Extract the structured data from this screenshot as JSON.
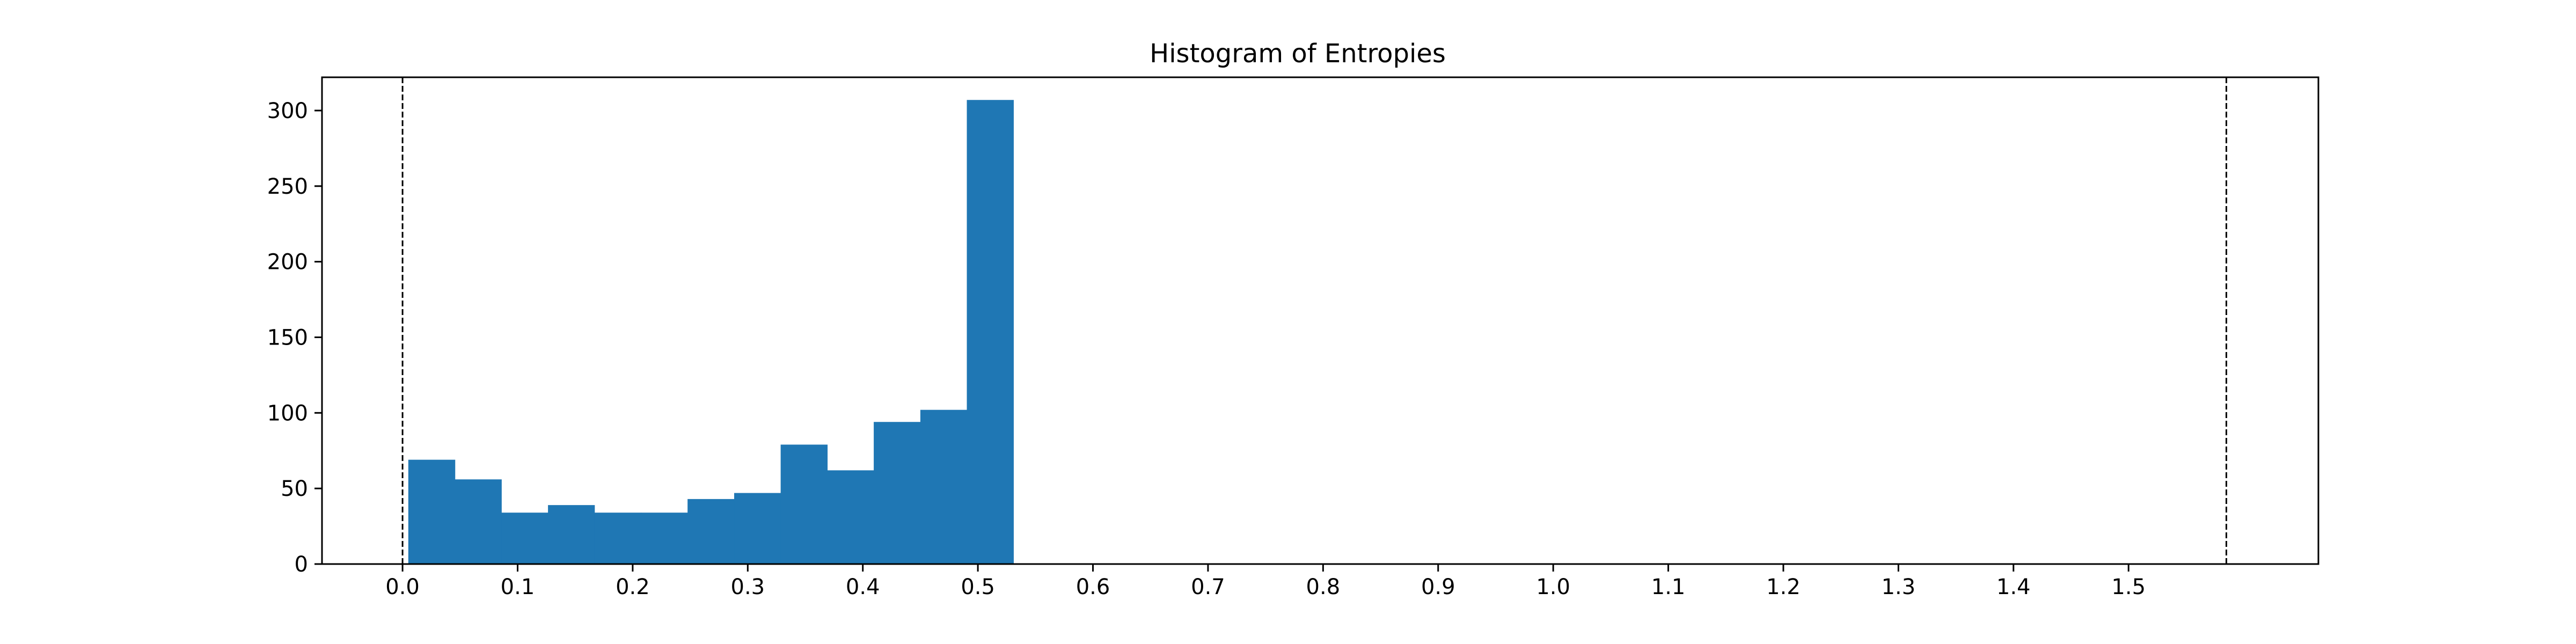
{
  "chart_data": {
    "type": "bar",
    "title": "Histogram of Entropies",
    "xlabel": "",
    "ylabel": "",
    "xlim": [
      -0.07,
      1.665
    ],
    "ylim": [
      0,
      322
    ],
    "bins": [
      {
        "x0": 0.005,
        "x1": 0.0455,
        "count": 69
      },
      {
        "x0": 0.0455,
        "x1": 0.0859,
        "count": 56
      },
      {
        "x0": 0.0859,
        "x1": 0.1264,
        "count": 34
      },
      {
        "x0": 0.1264,
        "x1": 0.1668,
        "count": 39
      },
      {
        "x0": 0.1668,
        "x1": 0.2073,
        "count": 34
      },
      {
        "x0": 0.2073,
        "x1": 0.2477,
        "count": 34
      },
      {
        "x0": 0.2477,
        "x1": 0.2882,
        "count": 43
      },
      {
        "x0": 0.2882,
        "x1": 0.3286,
        "count": 47
      },
      {
        "x0": 0.3286,
        "x1": 0.3691,
        "count": 79
      },
      {
        "x0": 0.3691,
        "x1": 0.4095,
        "count": 62
      },
      {
        "x0": 0.4095,
        "x1": 0.45,
        "count": 94
      },
      {
        "x0": 0.45,
        "x1": 0.4904,
        "count": 102
      },
      {
        "x0": 0.4904,
        "x1": 0.5309,
        "count": 307
      }
    ],
    "vlines": [
      0.0,
      1.585
    ],
    "vline_style": "dashed",
    "xticks": [
      "0.0",
      "0.1",
      "0.2",
      "0.3",
      "0.4",
      "0.5",
      "0.6",
      "0.7",
      "0.8",
      "0.9",
      "1.0",
      "1.1",
      "1.2",
      "1.3",
      "1.4",
      "1.5"
    ],
    "yticks": [
      "0",
      "50",
      "100",
      "150",
      "200",
      "250",
      "300"
    ],
    "bar_color": "#1f77b4",
    "grid": false,
    "legend": "none"
  }
}
